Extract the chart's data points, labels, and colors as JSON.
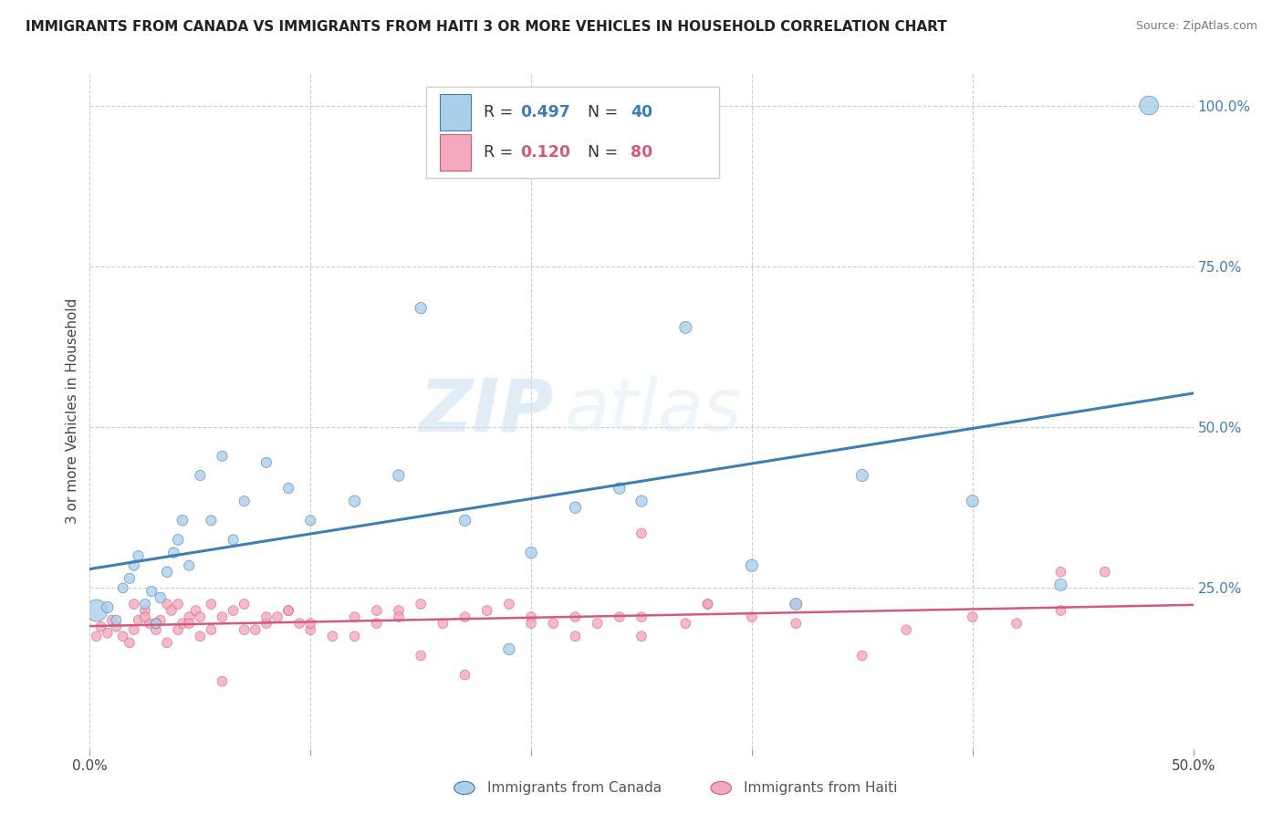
{
  "title": "IMMIGRANTS FROM CANADA VS IMMIGRANTS FROM HAITI 3 OR MORE VEHICLES IN HOUSEHOLD CORRELATION CHART",
  "source": "Source: ZipAtlas.com",
  "ylabel": "3 or more Vehicles in Household",
  "xlim": [
    0.0,
    0.5
  ],
  "ylim": [
    0.0,
    1.05
  ],
  "xticks": [
    0.0,
    0.1,
    0.2,
    0.3,
    0.4,
    0.5
  ],
  "xticklabels": [
    "0.0%",
    "",
    "",
    "",
    "",
    "50.0%"
  ],
  "yticks_right": [
    0.0,
    0.25,
    0.5,
    0.75,
    1.0
  ],
  "yticklabels_right": [
    "",
    "25.0%",
    "50.0%",
    "75.0%",
    "100.0%"
  ],
  "grid_color": "#cccccc",
  "background_color": "#ffffff",
  "watermark_zip": "ZIP",
  "watermark_atlas": "atlas",
  "canada_R": "0.497",
  "canada_N": "40",
  "haiti_R": "0.120",
  "haiti_N": "80",
  "canada_color": "#aacfe8",
  "haiti_color": "#f4a8be",
  "canada_line_color": "#3d7eb5",
  "haiti_line_color": "#d45a7a",
  "legend_labels": [
    "Immigrants from Canada",
    "Immigrants from Haiti"
  ],
  "canada_x": [
    0.003,
    0.008,
    0.012,
    0.015,
    0.018,
    0.02,
    0.022,
    0.025,
    0.028,
    0.03,
    0.032,
    0.035,
    0.038,
    0.04,
    0.042,
    0.045,
    0.05,
    0.055,
    0.06,
    0.065,
    0.07,
    0.08,
    0.09,
    0.1,
    0.12,
    0.14,
    0.15,
    0.17,
    0.19,
    0.2,
    0.22,
    0.24,
    0.25,
    0.27,
    0.3,
    0.32,
    0.35,
    0.4,
    0.44,
    0.48
  ],
  "canada_y": [
    0.215,
    0.22,
    0.2,
    0.25,
    0.265,
    0.285,
    0.3,
    0.225,
    0.245,
    0.195,
    0.235,
    0.275,
    0.305,
    0.325,
    0.355,
    0.285,
    0.425,
    0.355,
    0.455,
    0.325,
    0.385,
    0.445,
    0.405,
    0.355,
    0.385,
    0.425,
    0.685,
    0.355,
    0.155,
    0.305,
    0.375,
    0.405,
    0.385,
    0.655,
    0.285,
    0.225,
    0.425,
    0.385,
    0.255,
    1.0
  ],
  "canada_sizes": [
    300,
    80,
    60,
    60,
    65,
    65,
    65,
    65,
    65,
    65,
    70,
    70,
    70,
    70,
    70,
    65,
    65,
    65,
    65,
    65,
    65,
    65,
    65,
    65,
    80,
    80,
    80,
    80,
    80,
    80,
    80,
    80,
    80,
    90,
    90,
    90,
    90,
    90,
    90,
    220
  ],
  "haiti_x": [
    0.003,
    0.005,
    0.008,
    0.01,
    0.012,
    0.015,
    0.018,
    0.02,
    0.022,
    0.025,
    0.027,
    0.03,
    0.032,
    0.035,
    0.037,
    0.04,
    0.042,
    0.045,
    0.048,
    0.05,
    0.055,
    0.06,
    0.065,
    0.07,
    0.075,
    0.08,
    0.085,
    0.09,
    0.095,
    0.1,
    0.11,
    0.12,
    0.13,
    0.14,
    0.15,
    0.16,
    0.17,
    0.18,
    0.19,
    0.2,
    0.21,
    0.22,
    0.23,
    0.24,
    0.25,
    0.27,
    0.28,
    0.3,
    0.32,
    0.35,
    0.37,
    0.4,
    0.42,
    0.44,
    0.46,
    0.02,
    0.025,
    0.03,
    0.035,
    0.04,
    0.045,
    0.05,
    0.055,
    0.06,
    0.07,
    0.08,
    0.09,
    0.1,
    0.12,
    0.13,
    0.14,
    0.15,
    0.17,
    0.2,
    0.22,
    0.25,
    0.28,
    0.32,
    0.44,
    0.25
  ],
  "haiti_y": [
    0.175,
    0.19,
    0.18,
    0.2,
    0.19,
    0.175,
    0.165,
    0.185,
    0.2,
    0.215,
    0.195,
    0.185,
    0.2,
    0.225,
    0.215,
    0.185,
    0.195,
    0.205,
    0.215,
    0.175,
    0.185,
    0.205,
    0.215,
    0.225,
    0.185,
    0.195,
    0.205,
    0.215,
    0.195,
    0.185,
    0.175,
    0.205,
    0.195,
    0.215,
    0.145,
    0.195,
    0.205,
    0.215,
    0.225,
    0.205,
    0.195,
    0.175,
    0.195,
    0.205,
    0.175,
    0.195,
    0.225,
    0.205,
    0.195,
    0.145,
    0.185,
    0.205,
    0.195,
    0.215,
    0.275,
    0.225,
    0.205,
    0.195,
    0.165,
    0.225,
    0.195,
    0.205,
    0.225,
    0.105,
    0.185,
    0.205,
    0.215,
    0.195,
    0.175,
    0.215,
    0.205,
    0.225,
    0.115,
    0.195,
    0.205,
    0.205,
    0.225,
    0.225,
    0.275,
    0.335
  ],
  "haiti_sizes": [
    60,
    60,
    60,
    60,
    60,
    60,
    60,
    60,
    60,
    60,
    60,
    60,
    60,
    60,
    60,
    60,
    60,
    60,
    60,
    60,
    60,
    60,
    60,
    60,
    60,
    60,
    60,
    60,
    60,
    60,
    60,
    60,
    60,
    60,
    60,
    60,
    60,
    60,
    60,
    60,
    60,
    60,
    60,
    60,
    60,
    60,
    60,
    60,
    60,
    60,
    60,
    60,
    60,
    60,
    60,
    60,
    60,
    60,
    60,
    60,
    60,
    60,
    60,
    60,
    60,
    60,
    60,
    60,
    60,
    60,
    60,
    60,
    60,
    60,
    60,
    60,
    60,
    60,
    60,
    60
  ]
}
